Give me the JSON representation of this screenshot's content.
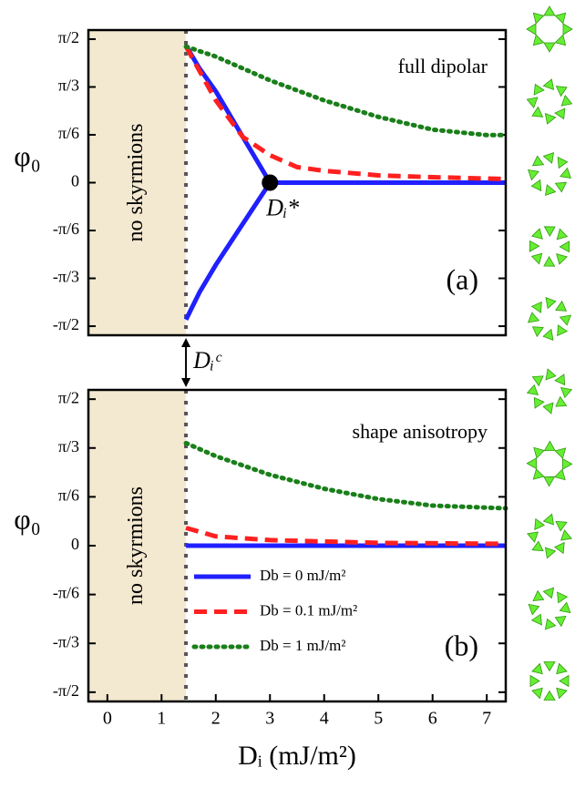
{
  "chart_data": [
    {
      "type": "line",
      "annotation": "full dipolar",
      "panel_label": "(a)",
      "region_label": "no skyrmions",
      "y_label": "φ₀",
      "point_label": "Dᵢ*",
      "critical_point": {
        "x": 3,
        "y": 0
      },
      "boundary_label": "Dᵢᶜ",
      "boundary_x": 1.45,
      "xlim": [
        -0.35,
        7.35
      ],
      "ylim": [
        -1.67,
        1.67
      ],
      "yticks": [
        {
          "value": 1.5708,
          "label": "π/2"
        },
        {
          "value": 1.0472,
          "label": "π/3"
        },
        {
          "value": 0.5236,
          "label": "π/6"
        },
        0,
        {
          "value": -0.5236,
          "label": "-π/6"
        },
        {
          "value": -1.0472,
          "label": "-π/3"
        },
        {
          "value": -1.5708,
          "label": "-π/2"
        }
      ],
      "series": [
        {
          "name": "Db = 0 mJ/m²",
          "color": "#2020ff",
          "style": "solid",
          "x": [
            1.45,
            1.7,
            2,
            2.5,
            3,
            7.35,
            null,
            1.45,
            1.7,
            2,
            2.5,
            3
          ],
          "values": [
            1.5,
            1.25,
            1.0,
            0.5,
            0,
            0,
            null,
            -1.5,
            -1.2,
            -0.9,
            -0.45,
            0
          ]
        },
        {
          "name": "Db = 0.1 mJ/m²",
          "color": "#ff2020",
          "style": "dashed",
          "x": [
            1.45,
            2,
            2.5,
            3,
            3.5,
            4,
            5,
            6,
            7.35
          ],
          "values": [
            1.49,
            0.9,
            0.5,
            0.3,
            0.17,
            0.13,
            0.08,
            0.06,
            0.04
          ]
        },
        {
          "name": "Db = 1 mJ/m²",
          "color": "#1a7f1a",
          "style": "dotted",
          "x": [
            1.45,
            2,
            3,
            4,
            5,
            6,
            7,
            7.35
          ],
          "values": [
            1.49,
            1.38,
            1.12,
            0.9,
            0.72,
            0.58,
            0.52,
            0.52
          ]
        }
      ]
    },
    {
      "type": "line",
      "annotation": "shape anisotropy",
      "panel_label": "(b)",
      "region_label": "no skyrmions",
      "y_label": "φ₀",
      "x_label": "Dᵢ (mJ/m²)",
      "boundary_x": 1.45,
      "legend": "lower left",
      "xlim": [
        -0.35,
        7.35
      ],
      "ylim": [
        -1.67,
        1.67
      ],
      "xticks": [
        0,
        1,
        2,
        3,
        4,
        5,
        6,
        7
      ],
      "yticks": [
        {
          "value": 1.5708,
          "label": "π/2"
        },
        {
          "value": 1.0472,
          "label": "π/3"
        },
        {
          "value": 0.5236,
          "label": "π/6"
        },
        0,
        {
          "value": -0.5236,
          "label": "-π/6"
        },
        {
          "value": -1.0472,
          "label": "-π/3"
        },
        {
          "value": -1.5708,
          "label": "-π/2"
        }
      ],
      "series": [
        {
          "name": "Db = 0 mJ/m²",
          "color": "#2020ff",
          "style": "solid",
          "x": [
            1.45,
            7.35
          ],
          "values": [
            0,
            0
          ]
        },
        {
          "name": "Db = 0.1 mJ/m²",
          "color": "#ff2020",
          "style": "dashed",
          "x": [
            1.45,
            2,
            3,
            5,
            7.35
          ],
          "values": [
            0.19,
            0.1,
            0.06,
            0.03,
            0.02
          ]
        },
        {
          "name": "Db = 1 mJ/m²",
          "color": "#1a7f1a",
          "style": "dotted",
          "x": [
            1.45,
            2,
            3,
            4,
            5,
            6,
            7.35
          ],
          "values": [
            1.1,
            0.96,
            0.76,
            0.61,
            0.5,
            0.43,
            0.4
          ]
        }
      ]
    }
  ]
}
